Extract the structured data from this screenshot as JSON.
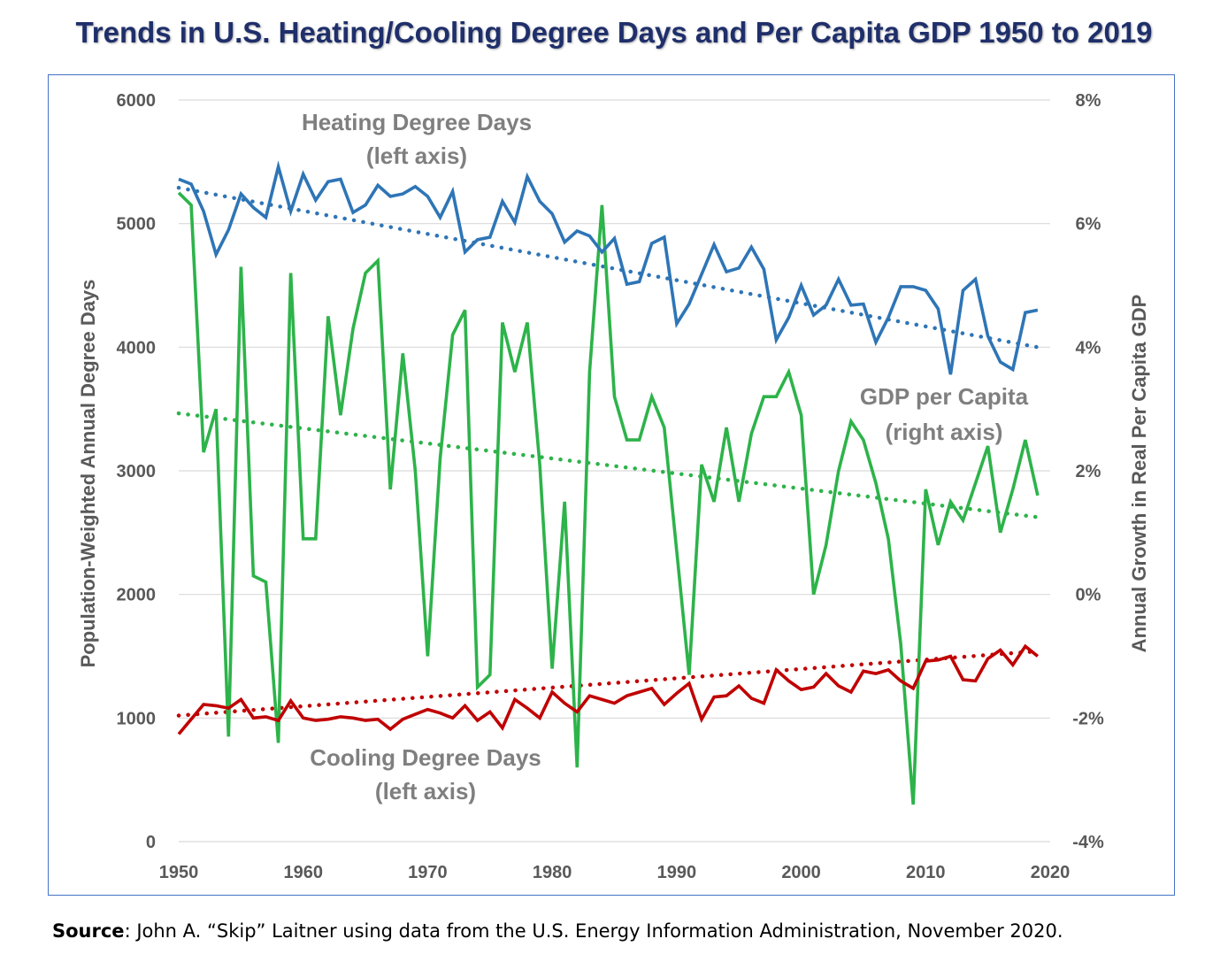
{
  "title": "Trends in U.S. Heating/Cooling Degree Days and Per Capita GDP 1950 to 2019",
  "source": {
    "label": "Source",
    "text": ": John A. “Skip” Laitner using data from the U.S. Energy Information Administration, November 2020."
  },
  "chart_data": {
    "type": "line",
    "xlabel": "",
    "ylabel": "Population-Weighted Annual Degree Days",
    "y2label": "Annual Growth in Real Per Capita GDP",
    "xlim": [
      1950,
      2020
    ],
    "ylim": [
      0,
      6000
    ],
    "y2lim": [
      -4,
      8
    ],
    "x_ticks": [
      "1950",
      "1960",
      "1970",
      "1980",
      "1990",
      "2000",
      "2010",
      "2020"
    ],
    "y_ticks": [
      "0",
      "1000",
      "2000",
      "3000",
      "4000",
      "5000",
      "6000"
    ],
    "y2_ticks": [
      "-4%",
      "-2%",
      "0%",
      "2%",
      "4%",
      "6%",
      "8%"
    ],
    "grid": "horizontal",
    "annotations": {
      "heating": [
        "Heating Degree Days",
        "(left axis)"
      ],
      "gdp": [
        "GDP per Capita",
        "(right axis)"
      ],
      "cooling": [
        "Cooling Degree Days",
        "(left axis)"
      ]
    },
    "colors": {
      "heating": "#2e75b6",
      "gdp": "#2db34a",
      "cooling": "#c00000",
      "grid": "#d9d9d9",
      "frame": "#4472c4"
    },
    "series": [
      {
        "key": "heating",
        "axis": "left",
        "x": [
          1950,
          1951,
          1952,
          1953,
          1954,
          1955,
          1956,
          1957,
          1958,
          1959,
          1960,
          1961,
          1962,
          1963,
          1964,
          1965,
          1966,
          1967,
          1968,
          1969,
          1970,
          1971,
          1972,
          1973,
          1974,
          1975,
          1976,
          1977,
          1978,
          1979,
          1980,
          1981,
          1982,
          1983,
          1984,
          1985,
          1986,
          1987,
          1988,
          1989,
          1990,
          1991,
          1992,
          1993,
          1994,
          1995,
          1996,
          1997,
          1998,
          1999,
          2000,
          2001,
          2002,
          2003,
          2004,
          2005,
          2006,
          2007,
          2008,
          2009,
          2010,
          2011,
          2012,
          2013,
          2014,
          2015,
          2016,
          2017,
          2018,
          2019
        ],
        "values": [
          5360,
          5320,
          5100,
          4750,
          4950,
          5240,
          5130,
          5050,
          5460,
          5100,
          5400,
          5190,
          5340,
          5360,
          5090,
          5150,
          5310,
          5220,
          5240,
          5300,
          5220,
          5050,
          5260,
          4770,
          4870,
          4890,
          5180,
          5010,
          5380,
          5180,
          5080,
          4850,
          4940,
          4900,
          4770,
          4880,
          4510,
          4530,
          4840,
          4890,
          4190,
          4350,
          4590,
          4830,
          4610,
          4640,
          4810,
          4630,
          4060,
          4240,
          4500,
          4260,
          4340,
          4550,
          4340,
          4350,
          4040,
          4240,
          4490,
          4490,
          4460,
          4310,
          3780,
          4460,
          4550,
          4090,
          3880,
          3820,
          4280,
          4300
        ]
      },
      {
        "key": "gdp",
        "axis": "right",
        "x": [
          1950,
          1951,
          1952,
          1953,
          1954,
          1955,
          1956,
          1957,
          1958,
          1959,
          1960,
          1961,
          1962,
          1963,
          1964,
          1965,
          1966,
          1967,
          1968,
          1969,
          1970,
          1971,
          1972,
          1973,
          1974,
          1975,
          1976,
          1977,
          1978,
          1979,
          1980,
          1981,
          1982,
          1983,
          1984,
          1985,
          1986,
          1987,
          1988,
          1989,
          1990,
          1991,
          1992,
          1993,
          1994,
          1995,
          1996,
          1997,
          1998,
          1999,
          2000,
          2001,
          2002,
          2003,
          2004,
          2005,
          2006,
          2007,
          2008,
          2009,
          2010,
          2011,
          2012,
          2013,
          2014,
          2015,
          2016,
          2017,
          2018,
          2019
        ],
        "values": [
          6.5,
          6.3,
          2.3,
          3.0,
          -2.3,
          5.3,
          0.3,
          0.2,
          -2.4,
          5.2,
          0.9,
          0.9,
          4.5,
          2.9,
          4.3,
          5.2,
          5.4,
          1.7,
          3.9,
          2.0,
          -1.0,
          2.2,
          4.2,
          4.6,
          -1.5,
          -1.3,
          4.4,
          3.6,
          4.4,
          2.1,
          -1.2,
          1.5,
          -2.8,
          3.6,
          6.3,
          3.2,
          2.5,
          2.5,
          3.2,
          2.7,
          0.7,
          -1.3,
          2.1,
          1.5,
          2.7,
          1.5,
          2.6,
          3.2,
          3.2,
          3.6,
          2.9,
          0.0,
          0.8,
          2.0,
          2.8,
          2.5,
          1.8,
          0.9,
          -0.8,
          -3.4,
          1.7,
          0.8,
          1.5,
          1.2,
          1.8,
          2.4,
          1.0,
          1.7,
          2.5,
          1.6
        ]
      },
      {
        "key": "cooling",
        "axis": "left",
        "x": [
          1950,
          1951,
          1952,
          1953,
          1954,
          1955,
          1956,
          1957,
          1958,
          1959,
          1960,
          1961,
          1962,
          1963,
          1964,
          1965,
          1966,
          1967,
          1968,
          1969,
          1970,
          1971,
          1972,
          1973,
          1974,
          1975,
          1976,
          1977,
          1978,
          1979,
          1980,
          1981,
          1982,
          1983,
          1984,
          1985,
          1986,
          1987,
          1988,
          1989,
          1990,
          1991,
          1992,
          1993,
          1994,
          1995,
          1996,
          1997,
          1998,
          1999,
          2000,
          2001,
          2002,
          2003,
          2004,
          2005,
          2006,
          2007,
          2008,
          2009,
          2010,
          2011,
          2012,
          2013,
          2014,
          2015,
          2016,
          2017,
          2018,
          2019
        ],
        "values": [
          870,
          990,
          1110,
          1100,
          1080,
          1150,
          1000,
          1010,
          980,
          1140,
          1000,
          980,
          990,
          1010,
          1000,
          980,
          990,
          910,
          990,
          1030,
          1070,
          1040,
          1000,
          1100,
          980,
          1050,
          920,
          1150,
          1080,
          1000,
          1210,
          1120,
          1050,
          1180,
          1150,
          1120,
          1180,
          1210,
          1240,
          1110,
          1200,
          1280,
          990,
          1170,
          1180,
          1260,
          1160,
          1120,
          1390,
          1300,
          1230,
          1250,
          1360,
          1260,
          1210,
          1380,
          1360,
          1390,
          1300,
          1240,
          1460,
          1470,
          1500,
          1310,
          1300,
          1480,
          1550,
          1430,
          1580,
          1500
        ]
      }
    ],
    "trendlines": [
      {
        "key": "heating",
        "axis": "left",
        "x": [
          1950,
          2019
        ],
        "values": [
          5290,
          4000
        ]
      },
      {
        "key": "gdp",
        "axis": "right",
        "x": [
          1950,
          2019
        ],
        "values": [
          2.93,
          1.25
        ]
      },
      {
        "key": "cooling",
        "axis": "left",
        "x": [
          1950,
          2019
        ],
        "values": [
          1020,
          1540
        ]
      }
    ]
  }
}
